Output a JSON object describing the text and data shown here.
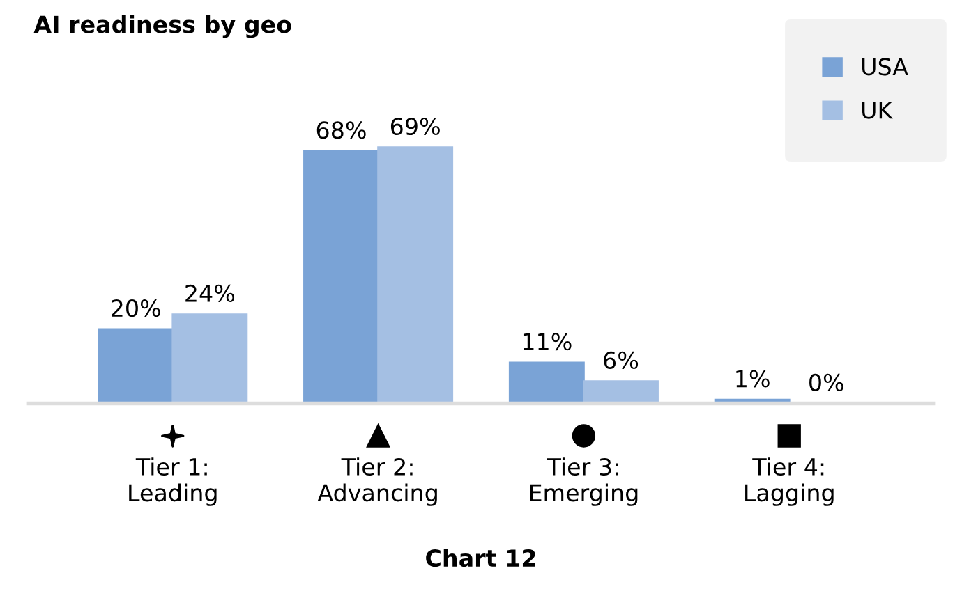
{
  "chart_data": {
    "type": "bar",
    "title": "AI readiness by geo",
    "categories": [
      "Tier 1:\nLeading",
      "Tier 2:\nAdvancing",
      "Tier 3:\nEmerging",
      "Tier 4:\nLagging"
    ],
    "series": [
      {
        "name": "USA",
        "color": "#7aa3d6",
        "values": [
          20,
          68,
          11,
          1
        ],
        "value_labels": [
          "20%",
          "68%",
          "11%",
          "1%"
        ]
      },
      {
        "name": "UK",
        "color": "#a4bfe3",
        "values": [
          24,
          69,
          6,
          0
        ],
        "value_labels": [
          "24%",
          "69%",
          "6%",
          "0%"
        ]
      }
    ],
    "legend": "top right",
    "annotations": [
      "Chart 12"
    ]
  }
}
